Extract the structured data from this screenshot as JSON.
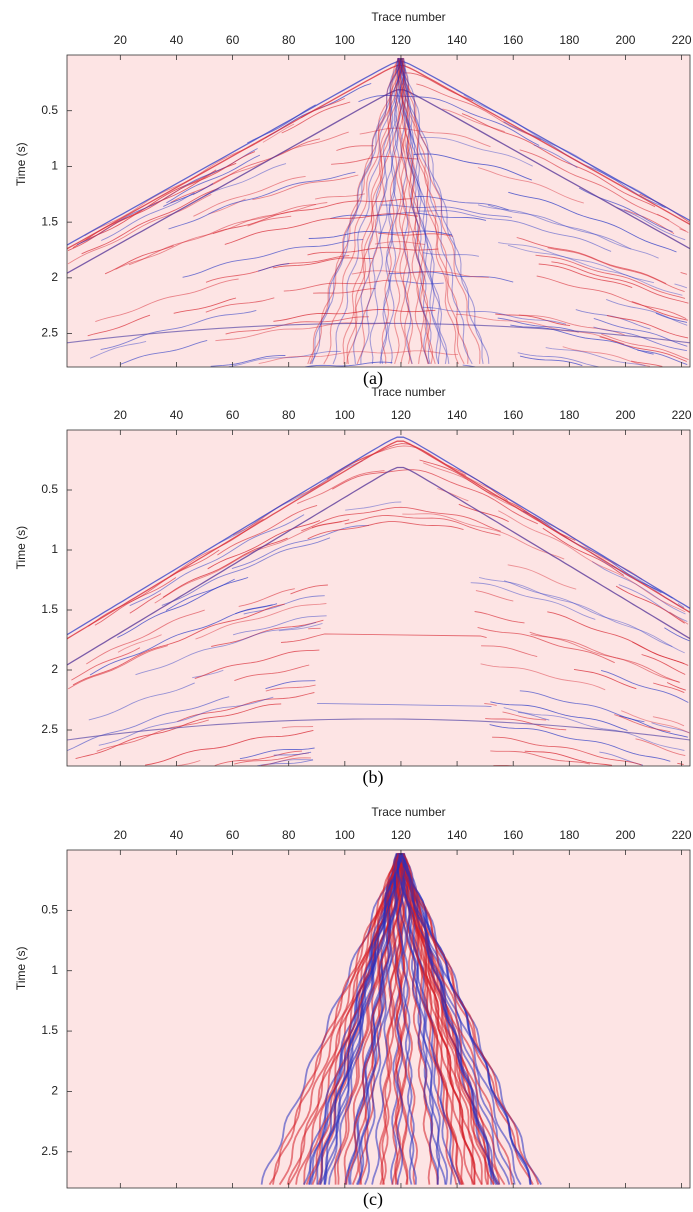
{
  "chart_data": [
    {
      "type": "seismic",
      "xlabel": "Trace number",
      "ylabel": "Time (s)",
      "caption": "(a)",
      "xlim": [
        1,
        223
      ],
      "ylim": [
        0,
        2.8
      ],
      "y_reversed": true,
      "xticks": [
        20,
        40,
        60,
        80,
        100,
        120,
        140,
        160,
        180,
        200,
        220
      ],
      "yticks": [
        0.5,
        1,
        1.5,
        2,
        2.5
      ]
    },
    {
      "type": "seismic",
      "xlabel": "Trace number",
      "ylabel": "Time (s)",
      "caption": "(b)",
      "xlim": [
        1,
        223
      ],
      "ylim": [
        0,
        2.8
      ],
      "y_reversed": true,
      "xticks": [
        20,
        40,
        60,
        80,
        100,
        120,
        140,
        160,
        180,
        200,
        220
      ],
      "yticks": [
        0.5,
        1,
        1.5,
        2,
        2.5
      ]
    },
    {
      "type": "seismic",
      "xlabel": "Trace number",
      "ylabel": "Time (s)",
      "caption": "(c)",
      "xlim": [
        1,
        223
      ],
      "ylim": [
        0,
        2.8
      ],
      "y_reversed": true,
      "xticks": [
        20,
        40,
        60,
        80,
        100,
        120,
        140,
        160,
        180,
        200,
        220
      ],
      "yticks": [
        0.5,
        1,
        1.5,
        2,
        2.5
      ]
    }
  ]
}
